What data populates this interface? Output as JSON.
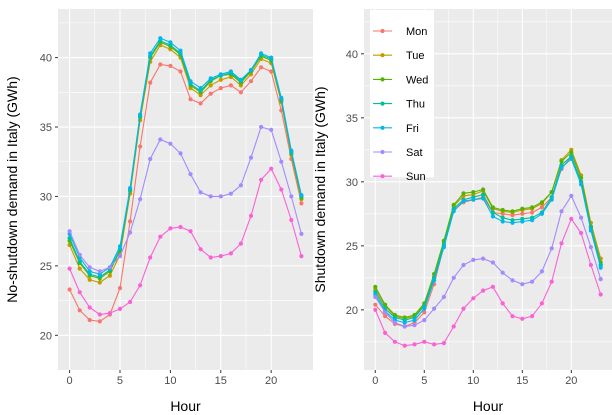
{
  "chart_data": [
    {
      "type": "line",
      "xlabel": "Hour",
      "ylabel": "No-shutdown demand in Italy (GWh)",
      "xlim": [
        -1.15,
        24.15
      ],
      "ylim": [
        17.5,
        43.5
      ],
      "xticks": [
        0,
        5,
        10,
        15,
        20
      ],
      "yticks": [
        20,
        25,
        30,
        35,
        40
      ],
      "grid": true,
      "legend": "none",
      "x": [
        0,
        1,
        2,
        3,
        4,
        5,
        6,
        7,
        8,
        9,
        10,
        11,
        12,
        13,
        14,
        15,
        16,
        17,
        18,
        19,
        20,
        21,
        22,
        23
      ],
      "series": [
        {
          "name": "Mon",
          "color": "#F8766D",
          "values": [
            23.3,
            21.8,
            21.1,
            21.0,
            21.5,
            23.4,
            28.2,
            33.6,
            38.2,
            39.5,
            39.4,
            39.0,
            37.0,
            36.7,
            37.4,
            37.8,
            38.0,
            37.5,
            38.3,
            39.3,
            39.0,
            36.2,
            32.7,
            29.5
          ]
        },
        {
          "name": "Tue",
          "color": "#C49A00",
          "values": [
            26.5,
            24.8,
            24.0,
            23.8,
            24.3,
            25.8,
            30.2,
            35.5,
            39.7,
            40.9,
            40.6,
            40.0,
            37.8,
            37.3,
            38.0,
            38.4,
            38.6,
            38.0,
            38.8,
            39.9,
            39.6,
            36.8,
            33.0,
            29.8
          ]
        },
        {
          "name": "Wed",
          "color": "#53B400",
          "values": [
            26.8,
            25.2,
            24.3,
            24.1,
            24.6,
            26.1,
            30.4,
            35.7,
            40.0,
            41.1,
            40.8,
            40.2,
            38.0,
            37.5,
            38.3,
            38.7,
            38.8,
            38.2,
            39.0,
            40.1,
            39.8,
            36.9,
            33.1,
            29.9
          ]
        },
        {
          "name": "Thu",
          "color": "#00C094",
          "values": [
            27.0,
            25.3,
            24.4,
            24.2,
            24.7,
            26.2,
            30.5,
            35.8,
            40.1,
            41.2,
            40.9,
            40.3,
            38.1,
            37.6,
            38.4,
            38.7,
            38.9,
            38.3,
            39.1,
            40.2,
            39.9,
            37.0,
            33.2,
            30.0
          ]
        },
        {
          "name": "Fri",
          "color": "#00B6EB",
          "values": [
            27.3,
            25.6,
            24.6,
            24.4,
            24.9,
            26.4,
            30.6,
            35.9,
            40.3,
            41.4,
            41.1,
            40.5,
            38.3,
            37.8,
            38.5,
            38.8,
            39.0,
            38.4,
            39.1,
            40.3,
            40.0,
            37.1,
            33.3,
            30.1
          ]
        },
        {
          "name": "Sat",
          "color": "#A58AFF",
          "values": [
            27.5,
            25.8,
            24.9,
            24.6,
            24.9,
            25.7,
            27.4,
            29.8,
            32.7,
            34.1,
            33.8,
            33.1,
            31.6,
            30.3,
            30.0,
            30.0,
            30.2,
            30.8,
            32.8,
            35.0,
            34.8,
            32.5,
            30.0,
            27.3
          ]
        },
        {
          "name": "Sun",
          "color": "#FB61D7",
          "values": [
            24.8,
            23.1,
            22.0,
            21.5,
            21.6,
            21.9,
            22.4,
            23.6,
            25.6,
            27.1,
            27.7,
            27.8,
            27.5,
            26.2,
            25.6,
            25.7,
            25.9,
            26.6,
            28.6,
            31.2,
            32.0,
            30.5,
            28.3,
            25.7
          ]
        }
      ]
    },
    {
      "type": "line",
      "xlabel": "Hour",
      "ylabel": "Shutdown demand in Italy (GWh)",
      "xlim": [
        -1.15,
        24.15
      ],
      "ylim": [
        15.3,
        43.5
      ],
      "xticks": [
        0,
        5,
        10,
        15,
        20
      ],
      "yticks": [
        20,
        25,
        30,
        35,
        40
      ],
      "grid": true,
      "legend": "top-left",
      "x": [
        0,
        1,
        2,
        3,
        4,
        5,
        6,
        7,
        8,
        9,
        10,
        11,
        12,
        13,
        14,
        15,
        16,
        17,
        18,
        19,
        20,
        21,
        22,
        23
      ],
      "series": [
        {
          "name": "Mon",
          "color": "#F8766D",
          "values": [
            20.4,
            19.5,
            18.9,
            18.7,
            19.0,
            19.8,
            22.0,
            25.0,
            27.8,
            28.4,
            28.6,
            28.8,
            27.6,
            27.5,
            27.4,
            27.5,
            27.6,
            28.0,
            28.8,
            31.0,
            32.0,
            30.0,
            26.5,
            23.5
          ]
        },
        {
          "name": "Tue",
          "color": "#C49A00",
          "values": [
            21.6,
            20.3,
            19.5,
            19.3,
            19.5,
            20.4,
            22.6,
            25.3,
            28.1,
            28.9,
            29.0,
            29.3,
            27.9,
            27.7,
            27.6,
            27.8,
            27.9,
            28.3,
            29.2,
            31.7,
            32.5,
            30.5,
            26.8,
            24.0
          ]
        },
        {
          "name": "Wed",
          "color": "#53B400",
          "values": [
            21.8,
            20.4,
            19.6,
            19.4,
            19.6,
            20.5,
            22.8,
            25.4,
            28.2,
            29.1,
            29.2,
            29.4,
            28.0,
            27.8,
            27.7,
            27.9,
            28.0,
            28.4,
            29.2,
            31.6,
            32.3,
            30.3,
            26.5,
            23.7
          ]
        },
        {
          "name": "Thu",
          "color": "#00C094",
          "values": [
            21.4,
            20.1,
            19.4,
            19.2,
            19.4,
            20.3,
            22.5,
            25.1,
            27.9,
            28.6,
            28.8,
            29.0,
            27.6,
            27.2,
            27.0,
            27.1,
            27.2,
            27.6,
            28.8,
            31.3,
            32.0,
            30.0,
            26.4,
            23.5
          ]
        },
        {
          "name": "Fri",
          "color": "#00B6EB",
          "values": [
            21.2,
            19.9,
            19.2,
            19.0,
            19.2,
            20.1,
            22.3,
            24.9,
            27.7,
            28.5,
            28.6,
            28.7,
            27.3,
            26.9,
            26.8,
            26.9,
            27.0,
            27.5,
            28.6,
            31.1,
            31.8,
            29.8,
            26.2,
            23.3
          ]
        },
        {
          "name": "Sat",
          "color": "#A58AFF",
          "values": [
            21.0,
            19.8,
            19.0,
            18.7,
            18.8,
            19.2,
            20.1,
            21.0,
            22.5,
            23.5,
            23.9,
            24.0,
            23.7,
            22.9,
            22.3,
            22.0,
            22.2,
            23.0,
            24.8,
            27.7,
            28.9,
            27.2,
            24.9,
            22.4
          ]
        },
        {
          "name": "Sun",
          "color": "#FB61D7",
          "values": [
            20.0,
            18.2,
            17.5,
            17.2,
            17.3,
            17.5,
            17.3,
            17.4,
            18.7,
            20.1,
            20.9,
            21.5,
            21.8,
            20.5,
            19.5,
            19.3,
            19.5,
            20.5,
            22.2,
            25.2,
            27.1,
            26.0,
            23.5,
            21.2
          ]
        }
      ]
    }
  ]
}
